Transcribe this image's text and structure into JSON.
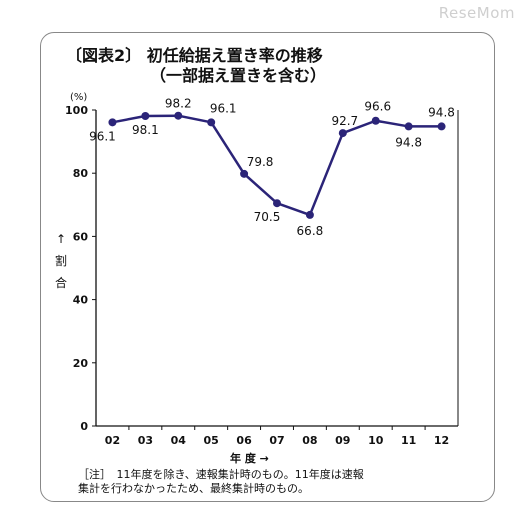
{
  "watermark": "ReseMom",
  "chart_data": {
    "type": "line",
    "title": "〔図表2〕 初任給据え置き率の推移",
    "subtitle": "（一部据え置きを含む）",
    "unit": "(%)",
    "ylabel": [
      "↑",
      "割",
      "合"
    ],
    "xlabel": "年 度 →",
    "categories": [
      "02",
      "03",
      "04",
      "05",
      "06",
      "07",
      "08",
      "09",
      "10",
      "11",
      "12"
    ],
    "series": [
      {
        "values": [
          96.1,
          98.1,
          98.2,
          96.1,
          79.8,
          70.5,
          66.8,
          92.7,
          96.6,
          94.8,
          94.8
        ]
      }
    ],
    "data_labels": [
      "96.1",
      "98.1",
      "98.2",
      "96.1",
      "79.8",
      "70.5",
      "66.8",
      "92.7",
      "96.6",
      "94.8",
      "94.8"
    ],
    "ylim": [
      0,
      100
    ],
    "yticks": [
      0,
      20,
      40,
      60,
      80,
      100
    ],
    "grid": false,
    "line_color": "#2b2478"
  },
  "note": {
    "line1": "［注］　11年度を除き、速報集計時のもの。11年度は速報",
    "line2": "集計を行わなかったため、最終集計時のもの。"
  }
}
